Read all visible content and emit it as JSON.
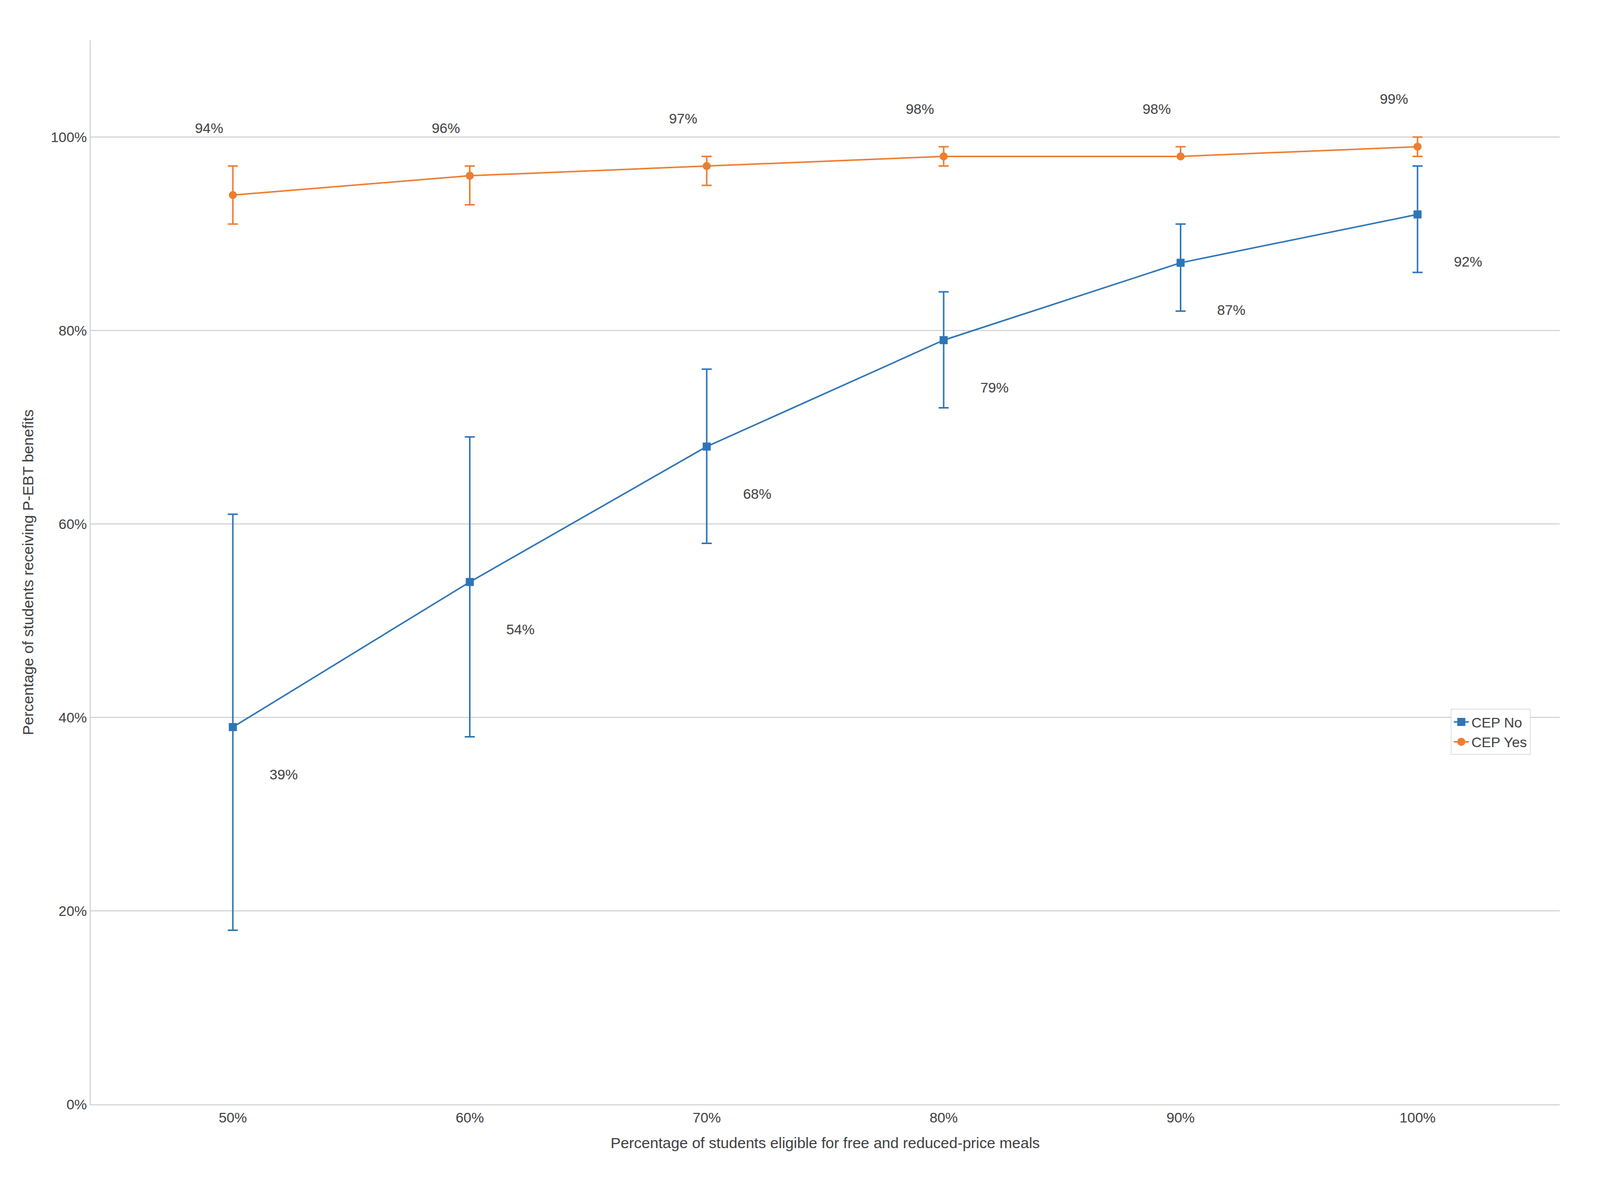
{
  "chart_data": {
    "type": "line",
    "x": [
      50,
      60,
      70,
      80,
      90,
      100
    ],
    "xlabel": "Percentage of students eligible for free and reduced-price meals",
    "ylabel": "Percentage of students receiving P-EBT benefits",
    "xlim": [
      44,
      106
    ],
    "ylim": [
      0,
      110
    ],
    "xticks": [
      {
        "value": 50,
        "label": "50%"
      },
      {
        "value": 60,
        "label": "60%"
      },
      {
        "value": 70,
        "label": "70%"
      },
      {
        "value": 80,
        "label": "80%"
      },
      {
        "value": 90,
        "label": "90%"
      },
      {
        "value": 100,
        "label": "100%"
      }
    ],
    "yticks": [
      {
        "value": 0,
        "label": "0%"
      },
      {
        "value": 20,
        "label": "20%"
      },
      {
        "value": 40,
        "label": "40%"
      },
      {
        "value": 60,
        "label": "60%"
      },
      {
        "value": 80,
        "label": "80%"
      },
      {
        "value": 100,
        "label": "100%"
      }
    ],
    "grid": true,
    "legend": "right",
    "data_labels": true,
    "series": [
      {
        "name": "CEP No",
        "color": "#2e75b6",
        "marker": "square",
        "values": [
          39,
          54,
          68,
          79,
          87,
          92
        ],
        "value_labels": [
          "39%",
          "54%",
          "68%",
          "79%",
          "87%",
          "92%"
        ],
        "error_upper": [
          61,
          69,
          76,
          84,
          91,
          97
        ],
        "error_lower": [
          18,
          38,
          58,
          72,
          82,
          86
        ]
      },
      {
        "name": "CEP Yes",
        "color": "#ed7d31",
        "marker": "circle",
        "values": [
          94,
          96,
          97,
          98,
          98,
          99
        ],
        "value_labels": [
          "94%",
          "96%",
          "97%",
          "98%",
          "98%",
          "99%"
        ],
        "error_upper": [
          97,
          97,
          98,
          99,
          99,
          100
        ],
        "error_lower": [
          91,
          93,
          95,
          97,
          98,
          98
        ]
      }
    ]
  }
}
